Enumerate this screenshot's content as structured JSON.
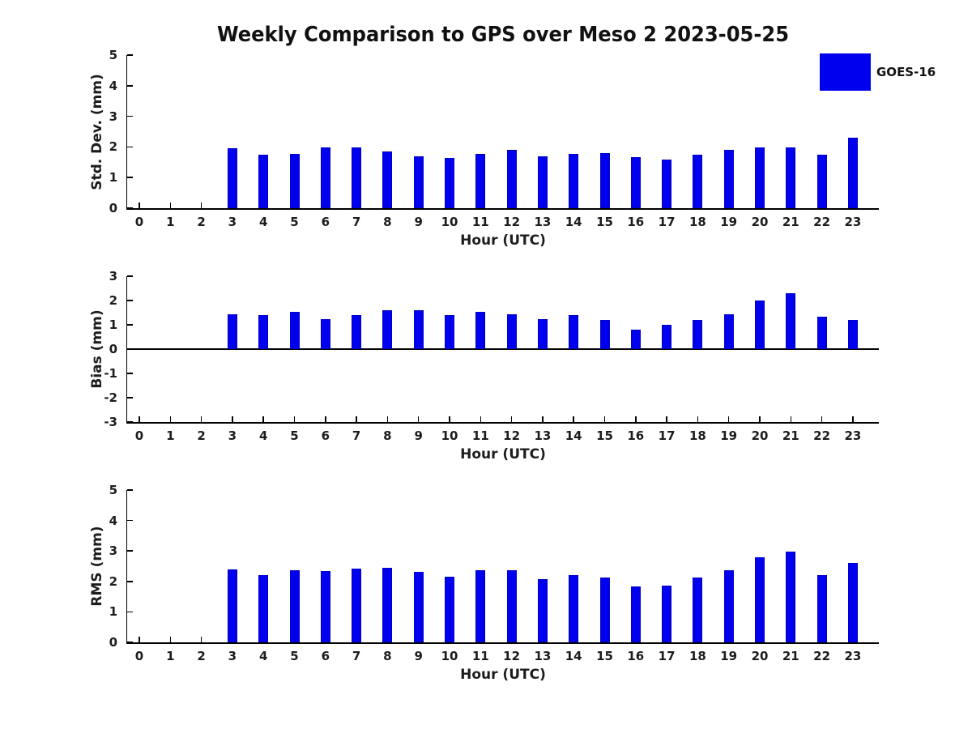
{
  "figure": {
    "title": "Weekly Comparison to GPS over Meso 2 2023-05-25"
  },
  "legend": {
    "label": "GOES-16",
    "position": "upper-right"
  },
  "colors": {
    "bar": "#0000EE",
    "bar_edge": "#0000C8",
    "axis": "#000000",
    "text": "#1c1c1c"
  },
  "chart_data": [
    {
      "type": "bar",
      "name": "std-dev",
      "ylabel": "Std. Dev. (mm)",
      "xlabel": "Hour (UTC)",
      "ylim": [
        0,
        5
      ],
      "yticks": [
        0,
        1,
        2,
        3,
        4,
        5
      ],
      "grid": false,
      "zero_line": false,
      "categories": [
        0,
        1,
        2,
        3,
        4,
        5,
        6,
        7,
        8,
        9,
        10,
        11,
        12,
        13,
        14,
        15,
        16,
        17,
        18,
        19,
        20,
        21,
        22,
        23
      ],
      "values": [
        null,
        null,
        null,
        1.95,
        1.75,
        1.78,
        1.98,
        1.98,
        1.85,
        1.7,
        1.65,
        1.78,
        1.9,
        1.7,
        1.78,
        1.8,
        1.67,
        1.58,
        1.75,
        1.9,
        1.98,
        1.98,
        1.75,
        2.3
      ]
    },
    {
      "type": "bar",
      "name": "bias",
      "ylabel": "Bias (mm)",
      "xlabel": "Hour (UTC)",
      "ylim": [
        -3,
        3
      ],
      "yticks": [
        -3,
        -2,
        -1,
        0,
        1,
        2,
        3
      ],
      "grid": false,
      "zero_line": true,
      "categories": [
        0,
        1,
        2,
        3,
        4,
        5,
        6,
        7,
        8,
        9,
        10,
        11,
        12,
        13,
        14,
        15,
        16,
        17,
        18,
        19,
        20,
        21,
        22,
        23
      ],
      "values": [
        null,
        null,
        null,
        1.45,
        1.4,
        1.55,
        1.25,
        1.4,
        1.6,
        1.6,
        1.4,
        1.55,
        1.45,
        1.25,
        1.4,
        1.2,
        0.8,
        1.0,
        1.2,
        1.45,
        2.0,
        2.3,
        1.35,
        1.2
      ]
    },
    {
      "type": "bar",
      "name": "rms",
      "ylabel": "RMS (mm)",
      "xlabel": "Hour (UTC)",
      "ylim": [
        0,
        5
      ],
      "yticks": [
        0,
        1,
        2,
        3,
        4,
        5
      ],
      "grid": false,
      "zero_line": false,
      "categories": [
        0,
        1,
        2,
        3,
        4,
        5,
        6,
        7,
        8,
        9,
        10,
        11,
        12,
        13,
        14,
        15,
        16,
        17,
        18,
        19,
        20,
        21,
        22,
        23
      ],
      "values": [
        null,
        null,
        null,
        2.4,
        2.22,
        2.36,
        2.34,
        2.42,
        2.45,
        2.32,
        2.15,
        2.36,
        2.36,
        2.08,
        2.22,
        2.14,
        1.84,
        1.87,
        2.13,
        2.36,
        2.8,
        2.98,
        2.21,
        2.6
      ]
    }
  ]
}
